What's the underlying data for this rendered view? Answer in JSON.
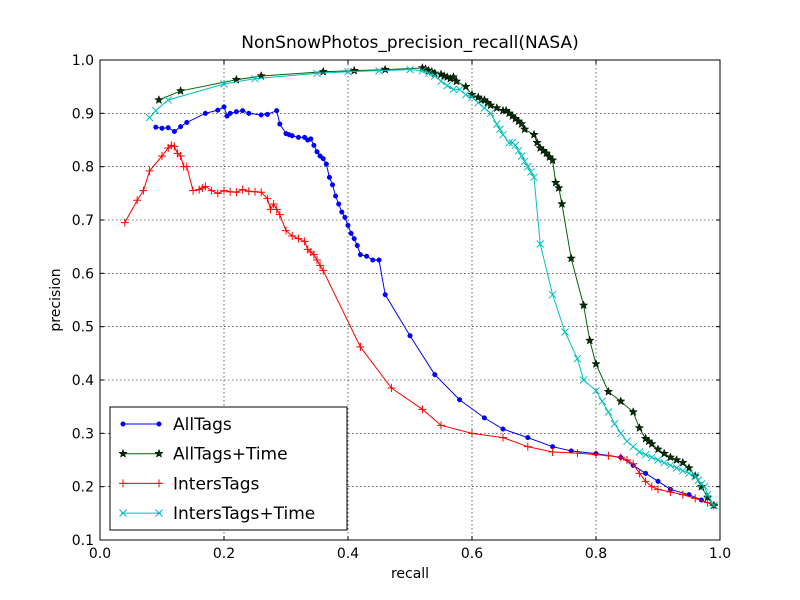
{
  "chart_data": {
    "type": "line",
    "title": "NonSnowPhotos_precision_recall(NASA)",
    "xlabel": "recall",
    "ylabel": "precision",
    "xlim": [
      0.0,
      1.0
    ],
    "ylim": [
      0.1,
      1.0
    ],
    "xticks": [
      "0.0",
      "0.2",
      "0.4",
      "0.6",
      "0.8",
      "1.0"
    ],
    "yticks": [
      "0.1",
      "0.2",
      "0.3",
      "0.4",
      "0.5",
      "0.6",
      "0.7",
      "0.8",
      "0.9",
      "1.0"
    ],
    "grid": true,
    "legend_position": "lower-left",
    "series": [
      {
        "name": "AllTags",
        "color": "#0000ff",
        "marker": "dot",
        "x": [
          0.09,
          0.1,
          0.11,
          0.12,
          0.13,
          0.14,
          0.17,
          0.19,
          0.2,
          0.205,
          0.21,
          0.22,
          0.23,
          0.24,
          0.26,
          0.27,
          0.285,
          0.29,
          0.3,
          0.305,
          0.31,
          0.32,
          0.33,
          0.335,
          0.34,
          0.345,
          0.35,
          0.355,
          0.36,
          0.365,
          0.37,
          0.375,
          0.38,
          0.385,
          0.39,
          0.395,
          0.4,
          0.405,
          0.41,
          0.415,
          0.42,
          0.43,
          0.44,
          0.45,
          0.46,
          0.5,
          0.54,
          0.58,
          0.62,
          0.65,
          0.69,
          0.73,
          0.76,
          0.8,
          0.84,
          0.86,
          0.88,
          0.9,
          0.92,
          0.95,
          0.97,
          0.99
        ],
        "y": [
          0.874,
          0.872,
          0.873,
          0.866,
          0.875,
          0.883,
          0.9,
          0.906,
          0.912,
          0.895,
          0.9,
          0.903,
          0.905,
          0.9,
          0.897,
          0.898,
          0.905,
          0.88,
          0.862,
          0.86,
          0.858,
          0.855,
          0.855,
          0.85,
          0.852,
          0.84,
          0.828,
          0.82,
          0.815,
          0.805,
          0.78,
          0.766,
          0.745,
          0.73,
          0.715,
          0.705,
          0.69,
          0.675,
          0.665,
          0.652,
          0.635,
          0.632,
          0.625,
          0.625,
          0.56,
          0.483,
          0.41,
          0.363,
          0.329,
          0.308,
          0.292,
          0.275,
          0.267,
          0.262,
          0.255,
          0.24,
          0.225,
          0.21,
          0.195,
          0.185,
          0.175,
          0.165
        ]
      },
      {
        "name": "AllTags+Time",
        "color": "#006400",
        "marker": "star",
        "x": [
          0.095,
          0.13,
          0.22,
          0.26,
          0.36,
          0.41,
          0.46,
          0.52,
          0.525,
          0.53,
          0.535,
          0.54,
          0.55,
          0.555,
          0.56,
          0.565,
          0.57,
          0.575,
          0.59,
          0.6,
          0.61,
          0.615,
          0.62,
          0.625,
          0.63,
          0.64,
          0.65,
          0.655,
          0.66,
          0.665,
          0.67,
          0.675,
          0.68,
          0.685,
          0.7,
          0.705,
          0.71,
          0.715,
          0.72,
          0.725,
          0.73,
          0.735,
          0.74,
          0.745,
          0.76,
          0.78,
          0.79,
          0.8,
          0.82,
          0.84,
          0.86,
          0.87,
          0.88,
          0.885,
          0.89,
          0.9,
          0.91,
          0.92,
          0.93,
          0.94,
          0.95,
          0.96,
          0.97,
          0.98,
          0.99
        ],
        "y": [
          0.925,
          0.942,
          0.963,
          0.97,
          0.978,
          0.98,
          0.982,
          0.985,
          0.983,
          0.98,
          0.978,
          0.975,
          0.973,
          0.97,
          0.968,
          0.965,
          0.968,
          0.96,
          0.95,
          0.935,
          0.93,
          0.925,
          0.925,
          0.92,
          0.915,
          0.91,
          0.905,
          0.905,
          0.9,
          0.895,
          0.89,
          0.885,
          0.88,
          0.87,
          0.86,
          0.845,
          0.835,
          0.83,
          0.825,
          0.818,
          0.812,
          0.77,
          0.76,
          0.73,
          0.628,
          0.54,
          0.474,
          0.43,
          0.378,
          0.36,
          0.34,
          0.31,
          0.29,
          0.285,
          0.28,
          0.27,
          0.262,
          0.255,
          0.25,
          0.245,
          0.235,
          0.22,
          0.2,
          0.18,
          0.165
        ]
      },
      {
        "name": "IntersTags",
        "color": "#ff0000",
        "marker": "plus",
        "x": [
          0.04,
          0.06,
          0.07,
          0.08,
          0.1,
          0.11,
          0.115,
          0.12,
          0.125,
          0.13,
          0.135,
          0.14,
          0.15,
          0.16,
          0.165,
          0.17,
          0.18,
          0.19,
          0.2,
          0.21,
          0.22,
          0.23,
          0.24,
          0.25,
          0.26,
          0.27,
          0.275,
          0.28,
          0.285,
          0.29,
          0.3,
          0.31,
          0.32,
          0.33,
          0.335,
          0.34,
          0.345,
          0.35,
          0.355,
          0.36,
          0.42,
          0.47,
          0.52,
          0.55,
          0.6,
          0.65,
          0.69,
          0.73,
          0.77,
          0.8,
          0.82,
          0.84,
          0.85,
          0.86,
          0.87,
          0.88,
          0.89,
          0.9,
          0.92,
          0.94,
          0.96,
          0.98,
          0.99
        ],
        "y": [
          0.695,
          0.737,
          0.755,
          0.792,
          0.82,
          0.835,
          0.84,
          0.838,
          0.825,
          0.82,
          0.8,
          0.8,
          0.755,
          0.757,
          0.76,
          0.763,
          0.755,
          0.75,
          0.755,
          0.753,
          0.752,
          0.757,
          0.754,
          0.753,
          0.752,
          0.74,
          0.72,
          0.73,
          0.72,
          0.71,
          0.68,
          0.67,
          0.665,
          0.66,
          0.645,
          0.64,
          0.635,
          0.625,
          0.615,
          0.605,
          0.462,
          0.385,
          0.345,
          0.315,
          0.3,
          0.292,
          0.275,
          0.265,
          0.263,
          0.26,
          0.258,
          0.255,
          0.25,
          0.243,
          0.225,
          0.21,
          0.2,
          0.195,
          0.19,
          0.185,
          0.178,
          0.17,
          0.165
        ]
      },
      {
        "name": "IntersTags+Time",
        "color": "#00bfbf",
        "marker": "x",
        "x": [
          0.08,
          0.09,
          0.11,
          0.2,
          0.25,
          0.35,
          0.4,
          0.45,
          0.5,
          0.52,
          0.53,
          0.54,
          0.55,
          0.56,
          0.57,
          0.58,
          0.59,
          0.6,
          0.61,
          0.62,
          0.63,
          0.64,
          0.645,
          0.65,
          0.66,
          0.665,
          0.67,
          0.675,
          0.68,
          0.685,
          0.69,
          0.695,
          0.7,
          0.71,
          0.73,
          0.75,
          0.77,
          0.78,
          0.8,
          0.81,
          0.82,
          0.83,
          0.84,
          0.85,
          0.86,
          0.87,
          0.88,
          0.89,
          0.9,
          0.91,
          0.92,
          0.93,
          0.94,
          0.95,
          0.96,
          0.965,
          0.97,
          0.975,
          0.98,
          0.99
        ],
        "y": [
          0.892,
          0.905,
          0.925,
          0.955,
          0.965,
          0.975,
          0.978,
          0.98,
          0.982,
          0.98,
          0.975,
          0.97,
          0.96,
          0.952,
          0.945,
          0.945,
          0.935,
          0.93,
          0.92,
          0.91,
          0.9,
          0.88,
          0.87,
          0.86,
          0.845,
          0.845,
          0.84,
          0.83,
          0.82,
          0.81,
          0.8,
          0.79,
          0.78,
          0.655,
          0.56,
          0.49,
          0.44,
          0.4,
          0.38,
          0.36,
          0.34,
          0.318,
          0.3,
          0.285,
          0.275,
          0.265,
          0.26,
          0.255,
          0.25,
          0.245,
          0.24,
          0.235,
          0.23,
          0.225,
          0.22,
          0.212,
          0.205,
          0.2,
          0.185,
          0.165
        ]
      }
    ]
  }
}
